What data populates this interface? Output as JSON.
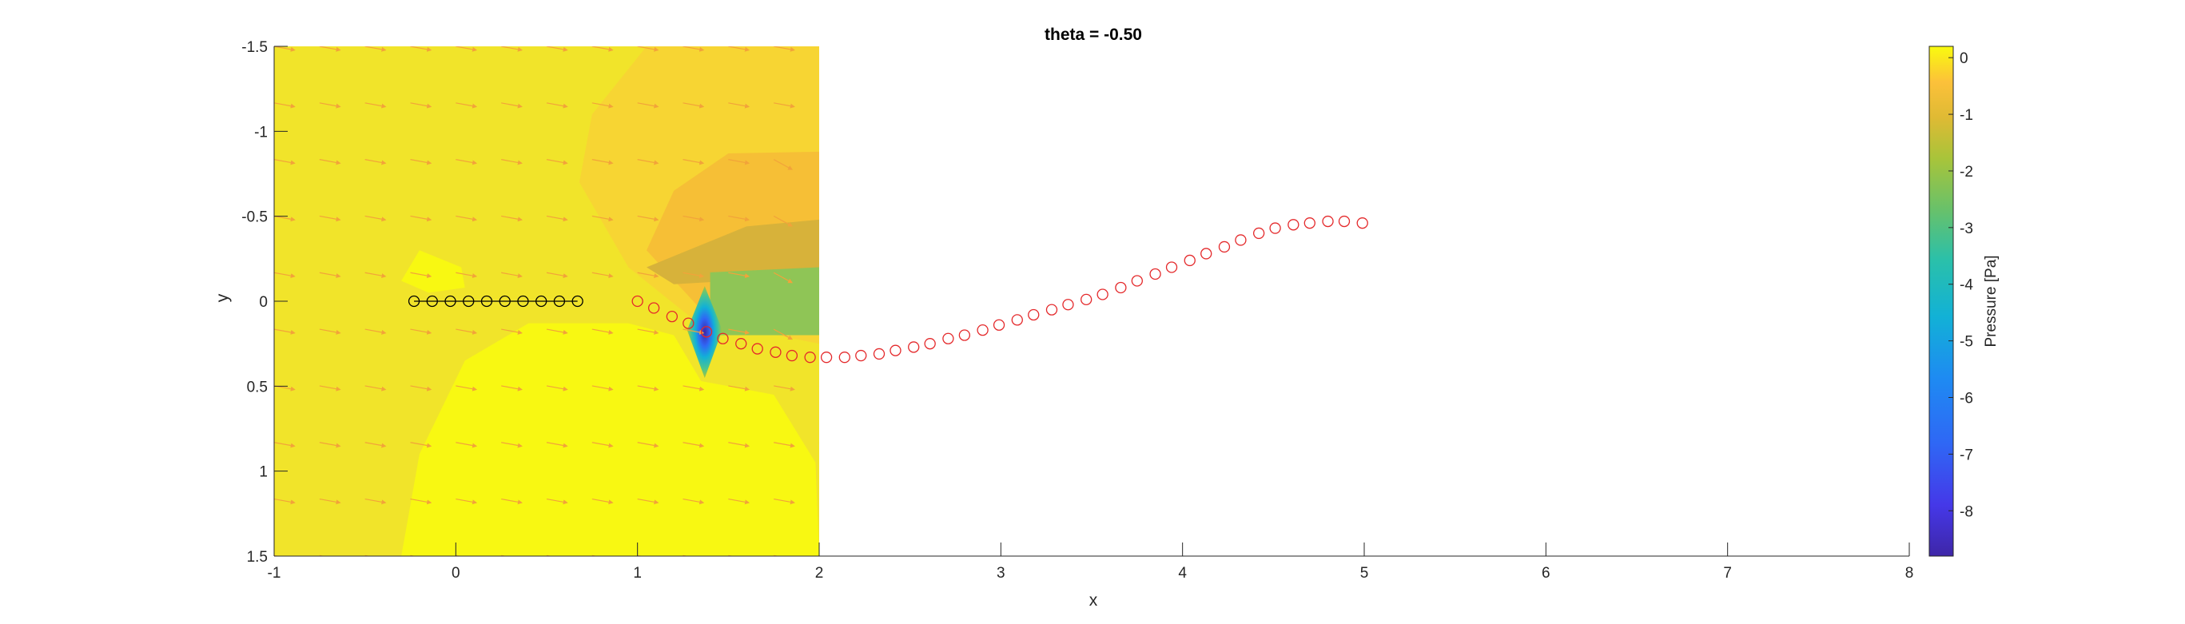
{
  "chart_data": {
    "type": "scatter",
    "title": "theta = -0.50",
    "xlabel": "x",
    "ylabel": "y",
    "xlim": [
      -1,
      8
    ],
    "ylim": [
      -1.5,
      1.5
    ],
    "y_reversed": true,
    "xticks": [
      "-1",
      "0",
      "1",
      "2",
      "3",
      "4",
      "5",
      "6",
      "7",
      "8"
    ],
    "yticks": [
      "-1.5",
      "-1",
      "-0.5",
      "0",
      "0.5",
      "1",
      "1.5"
    ],
    "colorbar": {
      "label": "Pressure [Pa]",
      "range": [
        -8.8,
        0.2
      ],
      "ticks": [
        "0",
        "-1",
        "-2",
        "-3",
        "-4",
        "-5",
        "-6",
        "-7",
        "-8"
      ],
      "colormap": "parula"
    },
    "pressure_field": {
      "x_range": [
        -1,
        2
      ],
      "y_range": [
        -1.5,
        1.5
      ],
      "background_value": -0.9,
      "low_pressure_center": {
        "x": 1.37,
        "y": 0.17,
        "value": -8.8
      },
      "wake_color": "#8fc556"
    },
    "velocity_arrows": {
      "color": "#f2a33a",
      "direction": "downstream"
    },
    "series": [
      {
        "marker": "circle",
        "line": true,
        "color": "#000000",
        "points": [
          [
            -0.23,
            0
          ],
          [
            -0.13,
            0
          ],
          [
            -0.03,
            0
          ],
          [
            0.07,
            0
          ],
          [
            0.17,
            0
          ],
          [
            0.27,
            0
          ],
          [
            0.37,
            0
          ],
          [
            0.47,
            0
          ],
          [
            0.57,
            0
          ],
          [
            0.67,
            0
          ]
        ]
      },
      {
        "marker": "circle",
        "line": false,
        "color": "#e4292b",
        "points": [
          [
            1.0,
            0.0
          ],
          [
            1.09,
            0.04
          ],
          [
            1.19,
            0.09
          ],
          [
            1.28,
            0.13
          ],
          [
            1.38,
            0.18
          ],
          [
            1.47,
            0.22
          ],
          [
            1.57,
            0.25
          ],
          [
            1.66,
            0.28
          ],
          [
            1.76,
            0.3
          ],
          [
            1.85,
            0.32
          ],
          [
            1.95,
            0.33
          ],
          [
            2.04,
            0.33
          ],
          [
            2.14,
            0.33
          ],
          [
            2.23,
            0.32
          ],
          [
            2.33,
            0.31
          ],
          [
            2.42,
            0.29
          ],
          [
            2.52,
            0.27
          ],
          [
            2.61,
            0.25
          ],
          [
            2.71,
            0.22
          ],
          [
            2.8,
            0.2
          ],
          [
            2.9,
            0.17
          ],
          [
            2.99,
            0.14
          ],
          [
            3.09,
            0.11
          ],
          [
            3.18,
            0.08
          ],
          [
            3.28,
            0.05
          ],
          [
            3.37,
            0.02
          ],
          [
            3.47,
            -0.01
          ],
          [
            3.56,
            -0.04
          ],
          [
            3.66,
            -0.08
          ],
          [
            3.75,
            -0.12
          ],
          [
            3.85,
            -0.16
          ],
          [
            3.94,
            -0.2
          ],
          [
            4.04,
            -0.24
          ],
          [
            4.13,
            -0.28
          ],
          [
            4.23,
            -0.32
          ],
          [
            4.32,
            -0.36
          ],
          [
            4.42,
            -0.4
          ],
          [
            4.51,
            -0.43
          ],
          [
            4.61,
            -0.45
          ],
          [
            4.7,
            -0.46
          ],
          [
            4.8,
            -0.47
          ],
          [
            4.89,
            -0.47
          ],
          [
            4.99,
            -0.46
          ]
        ]
      }
    ]
  }
}
